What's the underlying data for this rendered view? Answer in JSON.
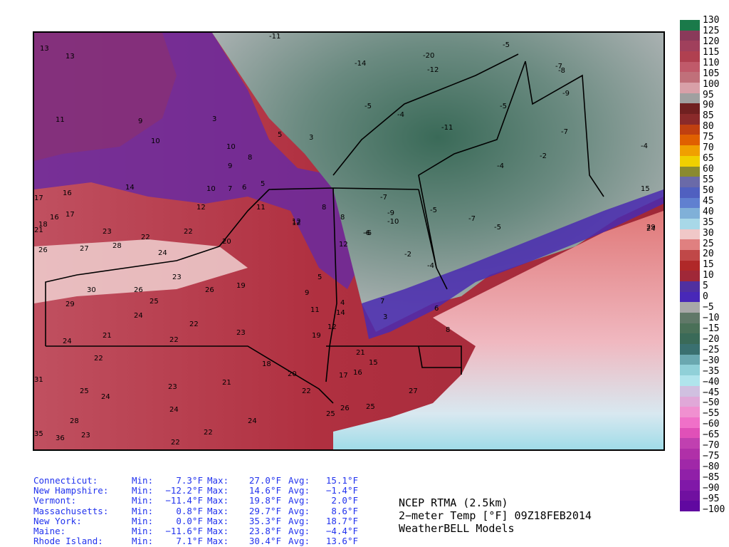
{
  "title": {
    "line1": "NCEP RTMA (2.5km)",
    "line2": "2−meter Temp [°F] 09Z18FEB2014",
    "line3": "WeatherBELL Models"
  },
  "colorbar": {
    "labels": [
      "130",
      "125",
      "120",
      "115",
      "110",
      "105",
      "100",
      "95",
      "90",
      "85",
      "80",
      "75",
      "70",
      "65",
      "60",
      "55",
      "50",
      "45",
      "40",
      "35",
      "30",
      "25",
      "20",
      "15",
      "10",
      "5",
      "0",
      "−5",
      "−10",
      "−15",
      "−20",
      "−25",
      "−30",
      "−35",
      "−40",
      "−45",
      "−50",
      "−55",
      "−60",
      "−65",
      "−70",
      "−75",
      "−80",
      "−85",
      "−90",
      "−95",
      "−100"
    ],
    "colors": [
      "#1a7a4a",
      "#8a3a5a",
      "#a0405c",
      "#b04050",
      "#c05a6a",
      "#c0707a",
      "#d8a0a8",
      "#a0a0a0",
      "#702020",
      "#8a2a2a",
      "#c04010",
      "#e06000",
      "#f0a000",
      "#f0d000",
      "#8a8a30",
      "#6a6aa8",
      "#5060c0",
      "#6080d0",
      "#80b0d8",
      "#a8d8e8",
      "#f0c8c8",
      "#e08080",
      "#c04848",
      "#b02828",
      "#a02838",
      "#5030a0",
      "#4828b8",
      "#a8a8a8",
      "#607868",
      "#4a7058",
      "#3a6a58",
      "#3a7070",
      "#6aa8b0",
      "#90d0d8",
      "#b0e4ec",
      "#d0c0e0",
      "#e0a8d8",
      "#f090d0",
      "#f070c8",
      "#e050b8",
      "#c040b0",
      "#b030a8",
      "#a028a8",
      "#9020a8",
      "#8018a8",
      "#7010a0",
      "#6008a0"
    ]
  },
  "stats": [
    {
      "state": "Connecticut:",
      "min_label": "Min:",
      "min": "7.3°F",
      "max_label": "Max:",
      "max": "27.0°F",
      "avg_label": "Avg:",
      "avg": "15.1°F"
    },
    {
      "state": "New Hampshire:",
      "min_label": "Min:",
      "min": "−12.2°F",
      "max_label": "Max:",
      "max": "14.6°F",
      "avg_label": "Avg:",
      "avg": "−1.4°F"
    },
    {
      "state": "Vermont:",
      "min_label": "Min:",
      "min": "−11.4°F",
      "max_label": "Max:",
      "max": "19.8°F",
      "avg_label": "Avg:",
      "avg": "2.0°F"
    },
    {
      "state": "Massachusetts:",
      "min_label": "Min:",
      "min": "0.8°F",
      "max_label": "Max:",
      "max": "29.7°F",
      "avg_label": "Avg:",
      "avg": "8.6°F"
    },
    {
      "state": "New York:",
      "min_label": "Min:",
      "min": "0.0°F",
      "max_label": "Max:",
      "max": "35.3°F",
      "avg_label": "Avg:",
      "avg": "18.7°F"
    },
    {
      "state": "Maine:",
      "min_label": "Min:",
      "min": "−11.6°F",
      "max_label": "Max:",
      "max": "23.8°F",
      "avg_label": "Avg:",
      "avg": "−4.4°F"
    },
    {
      "state": "Rhode Island:",
      "min_label": "Min:",
      "min": "7.1°F",
      "max_label": "Max:",
      "max": "30.4°F",
      "avg_label": "Avg:",
      "avg": "13.6°F"
    }
  ],
  "map_values": [
    "13",
    "13",
    "11",
    "9",
    "3",
    "10",
    "10",
    "9",
    "8",
    "5",
    "3",
    "-11",
    "-14",
    "-20",
    "-12",
    "-5",
    "-7",
    "-8",
    "16",
    "14",
    "10",
    "7",
    "6",
    "5",
    "-5",
    "-4",
    "-5",
    "-11",
    "-9",
    "-7",
    "-2",
    "-4",
    "-4",
    "17",
    "18",
    "16",
    "17",
    "12",
    "11",
    "12",
    "8",
    "8",
    "-7",
    "-9",
    "-6",
    "-10",
    "-5",
    "-7",
    "-5",
    "15",
    "21",
    "23",
    "22",
    "22",
    "20",
    "12",
    "-6",
    "-2",
    "-4",
    "24",
    "26",
    "27",
    "28",
    "24",
    "23",
    "26",
    "19",
    "9",
    "5",
    "12",
    "4",
    "7",
    "3",
    "6",
    "8",
    "29",
    "30",
    "26",
    "25",
    "24",
    "22",
    "21",
    "24",
    "22",
    "23",
    "12",
    "11",
    "14",
    "19",
    "21",
    "18",
    "20",
    "17",
    "16",
    "15",
    "22",
    "31",
    "25",
    "24",
    "23",
    "21",
    "22",
    "24",
    "28",
    "36",
    "35",
    "23",
    "22",
    "24",
    "22",
    "25",
    "26",
    "25",
    "27",
    "29",
    "24"
  ]
}
